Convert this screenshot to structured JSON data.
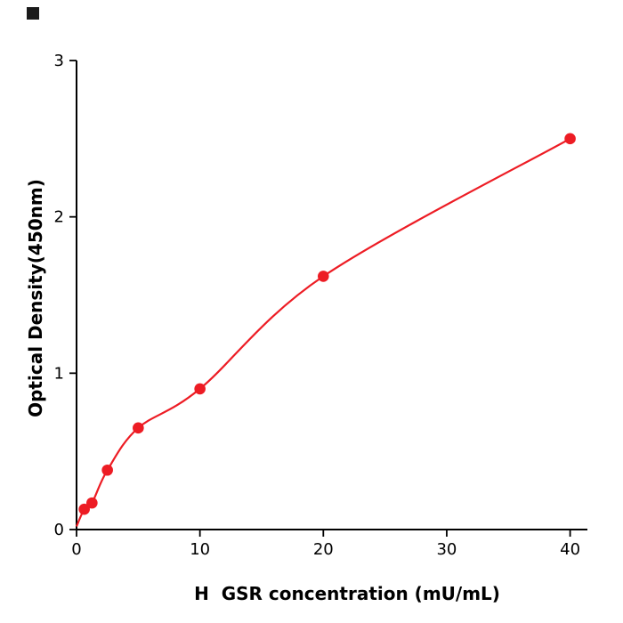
{
  "corner_mark": {
    "color": "#1a1a1a"
  },
  "chart_data": {
    "type": "scatter",
    "title": "",
    "xlabel": "H  GSR concentration (mU/mL)",
    "ylabel": "Optical Density(450nm)",
    "x": [
      0.625,
      1.25,
      2.5,
      5,
      10,
      20,
      40
    ],
    "y": [
      0.13,
      0.17,
      0.38,
      0.65,
      0.9,
      1.62,
      2.5
    ],
    "xticks": [
      0,
      10,
      20,
      30,
      40
    ],
    "yticks": [
      0,
      1,
      2,
      3
    ],
    "xlim": [
      0,
      41.4
    ],
    "ylim": [
      0,
      3
    ],
    "grid": false,
    "legend": null,
    "point_color": "#ed1c24",
    "line_color": "#ed1c24",
    "axis_color": "#000000",
    "fit": {
      "style": "smooth-through-points",
      "start_point": [
        0,
        0.02
      ]
    }
  }
}
